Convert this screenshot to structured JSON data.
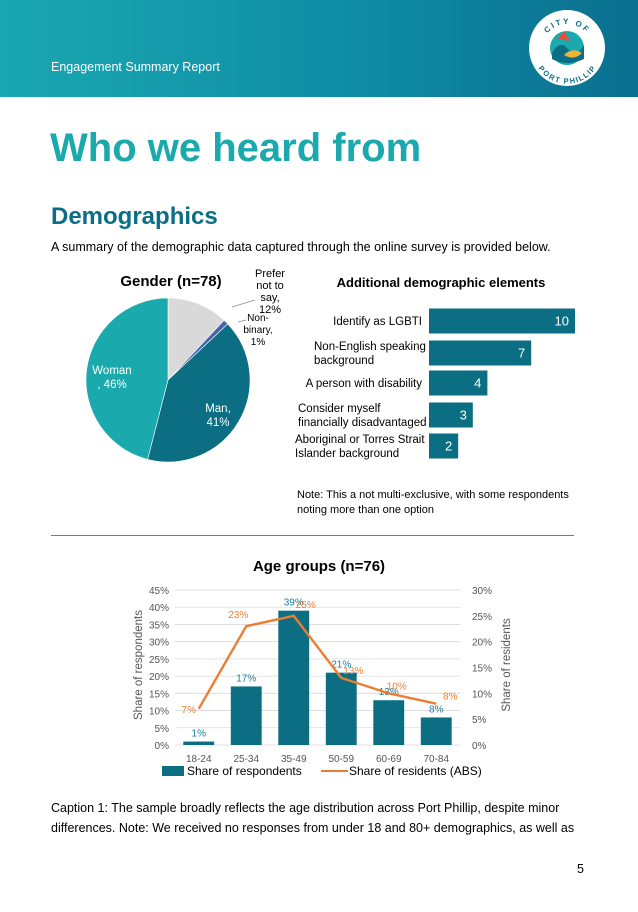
{
  "header": {
    "report_title": "Engagement Summary Report",
    "logo_top_text": "CITY OF",
    "logo_bottom_text": "PORT PHILLIP"
  },
  "page": {
    "title": "Who we heard from",
    "subtitle": "Demographics",
    "intro": "A summary of the demographic data captured through the online survey is provided below.",
    "caption": "Caption 1: The sample broadly reflects the age distribution across Port Phillip, despite minor differences. Note: We received no responses from under 18 and 80+ demographics, as well as",
    "page_number": "5",
    "note": "Note: This a not multi-exclusive, with some respondents noting more than one option"
  },
  "colors": {
    "teal_dark": "#0b6e82",
    "teal_light": "#1aa9ac",
    "grey": "#d9d9d9",
    "blue": "#4565b0",
    "orange": "#ed7d31",
    "bar_blue": "#0b6e82"
  },
  "chart_data": [
    {
      "type": "pie",
      "title": "Gender (n=78)",
      "slices": [
        {
          "label": "Prefer not to say, 12%",
          "value": 12
        },
        {
          "label": "Non-binary, 1%",
          "value": 1
        },
        {
          "label": "Man, 41%",
          "value": 41
        },
        {
          "label": "Woman , 46%",
          "value": 46
        }
      ]
    },
    {
      "type": "bar",
      "orientation": "horizontal",
      "title": "Additional demographic elements",
      "categories": [
        "Identify as LGBTI",
        "Non-English speaking background",
        "A person with disability",
        "Consider myself financially disadvantaged",
        "Aboriginal or Torres Strait Islander background"
      ],
      "values": [
        10,
        7,
        4,
        3,
        2
      ]
    },
    {
      "type": "bar",
      "title": "Age groups (n=76)",
      "categories": [
        "18-24",
        "25-34",
        "35-49",
        "50-59",
        "60-69",
        "70-84"
      ],
      "series": [
        {
          "name": "Share of respondents",
          "type": "bar",
          "axis": "left",
          "values": [
            1,
            17,
            39,
            21,
            13,
            8
          ],
          "labels": [
            "1%",
            "17%",
            "39%",
            "21%",
            "13%",
            "8%"
          ]
        },
        {
          "name": "Share of residents (ABS)",
          "type": "line",
          "axis": "right",
          "values": [
            7,
            23,
            25,
            13,
            10,
            8
          ],
          "labels": [
            "7%",
            "23%",
            "25%",
            "13%",
            "10%",
            "8%"
          ]
        }
      ],
      "ylabel": "Share of respondents",
      "y2label": "Share of residents",
      "ylim": [
        0,
        45
      ],
      "y2lim": [
        0,
        30
      ],
      "yticks": [
        "0%",
        "5%",
        "10%",
        "15%",
        "20%",
        "25%",
        "30%",
        "35%",
        "40%",
        "45%"
      ],
      "y2ticks": [
        "0%",
        "5%",
        "10%",
        "15%",
        "20%",
        "25%",
        "30%"
      ],
      "legend": "bottom",
      "grid": true
    }
  ]
}
